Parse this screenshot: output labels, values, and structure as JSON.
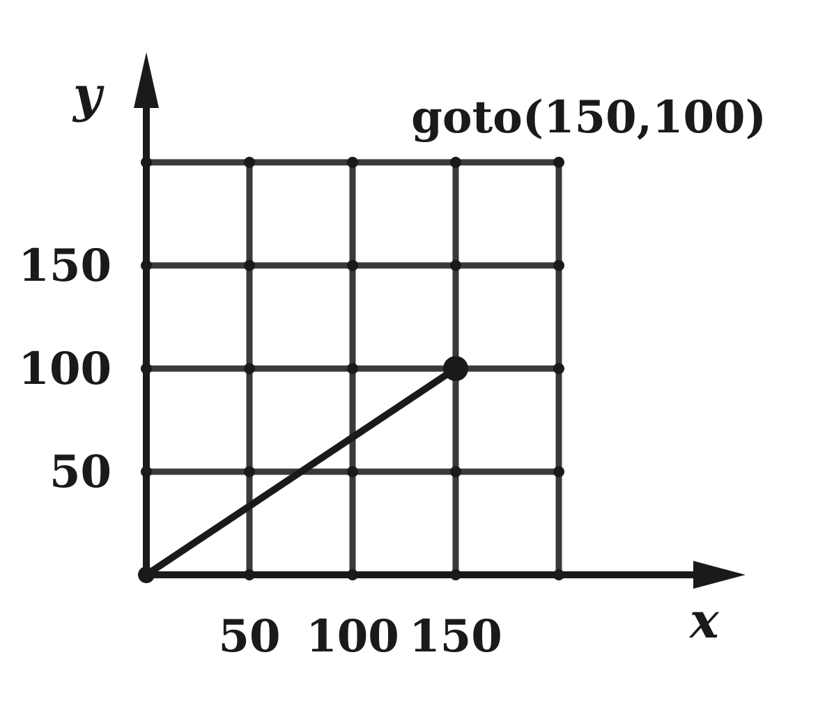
{
  "diagram": {
    "command_label": "goto(150,100)",
    "x_axis_name": "x",
    "y_axis_name": "y",
    "x_ticks": [
      {
        "value": 50,
        "label": "50"
      },
      {
        "value": 100,
        "label": "100"
      },
      {
        "value": 150,
        "label": "150"
      }
    ],
    "y_ticks": [
      {
        "value": 50,
        "label": "50"
      },
      {
        "value": 100,
        "label": "100"
      },
      {
        "value": 150,
        "label": "150"
      }
    ],
    "grid_step": 50,
    "grid_max": 200,
    "path": {
      "from": {
        "x": 0,
        "y": 0
      },
      "to": {
        "x": 150,
        "y": 100
      }
    },
    "colors": {
      "ink": "#1a1a1a",
      "grid": "#3a3a3a",
      "background": "#ffffff"
    }
  }
}
